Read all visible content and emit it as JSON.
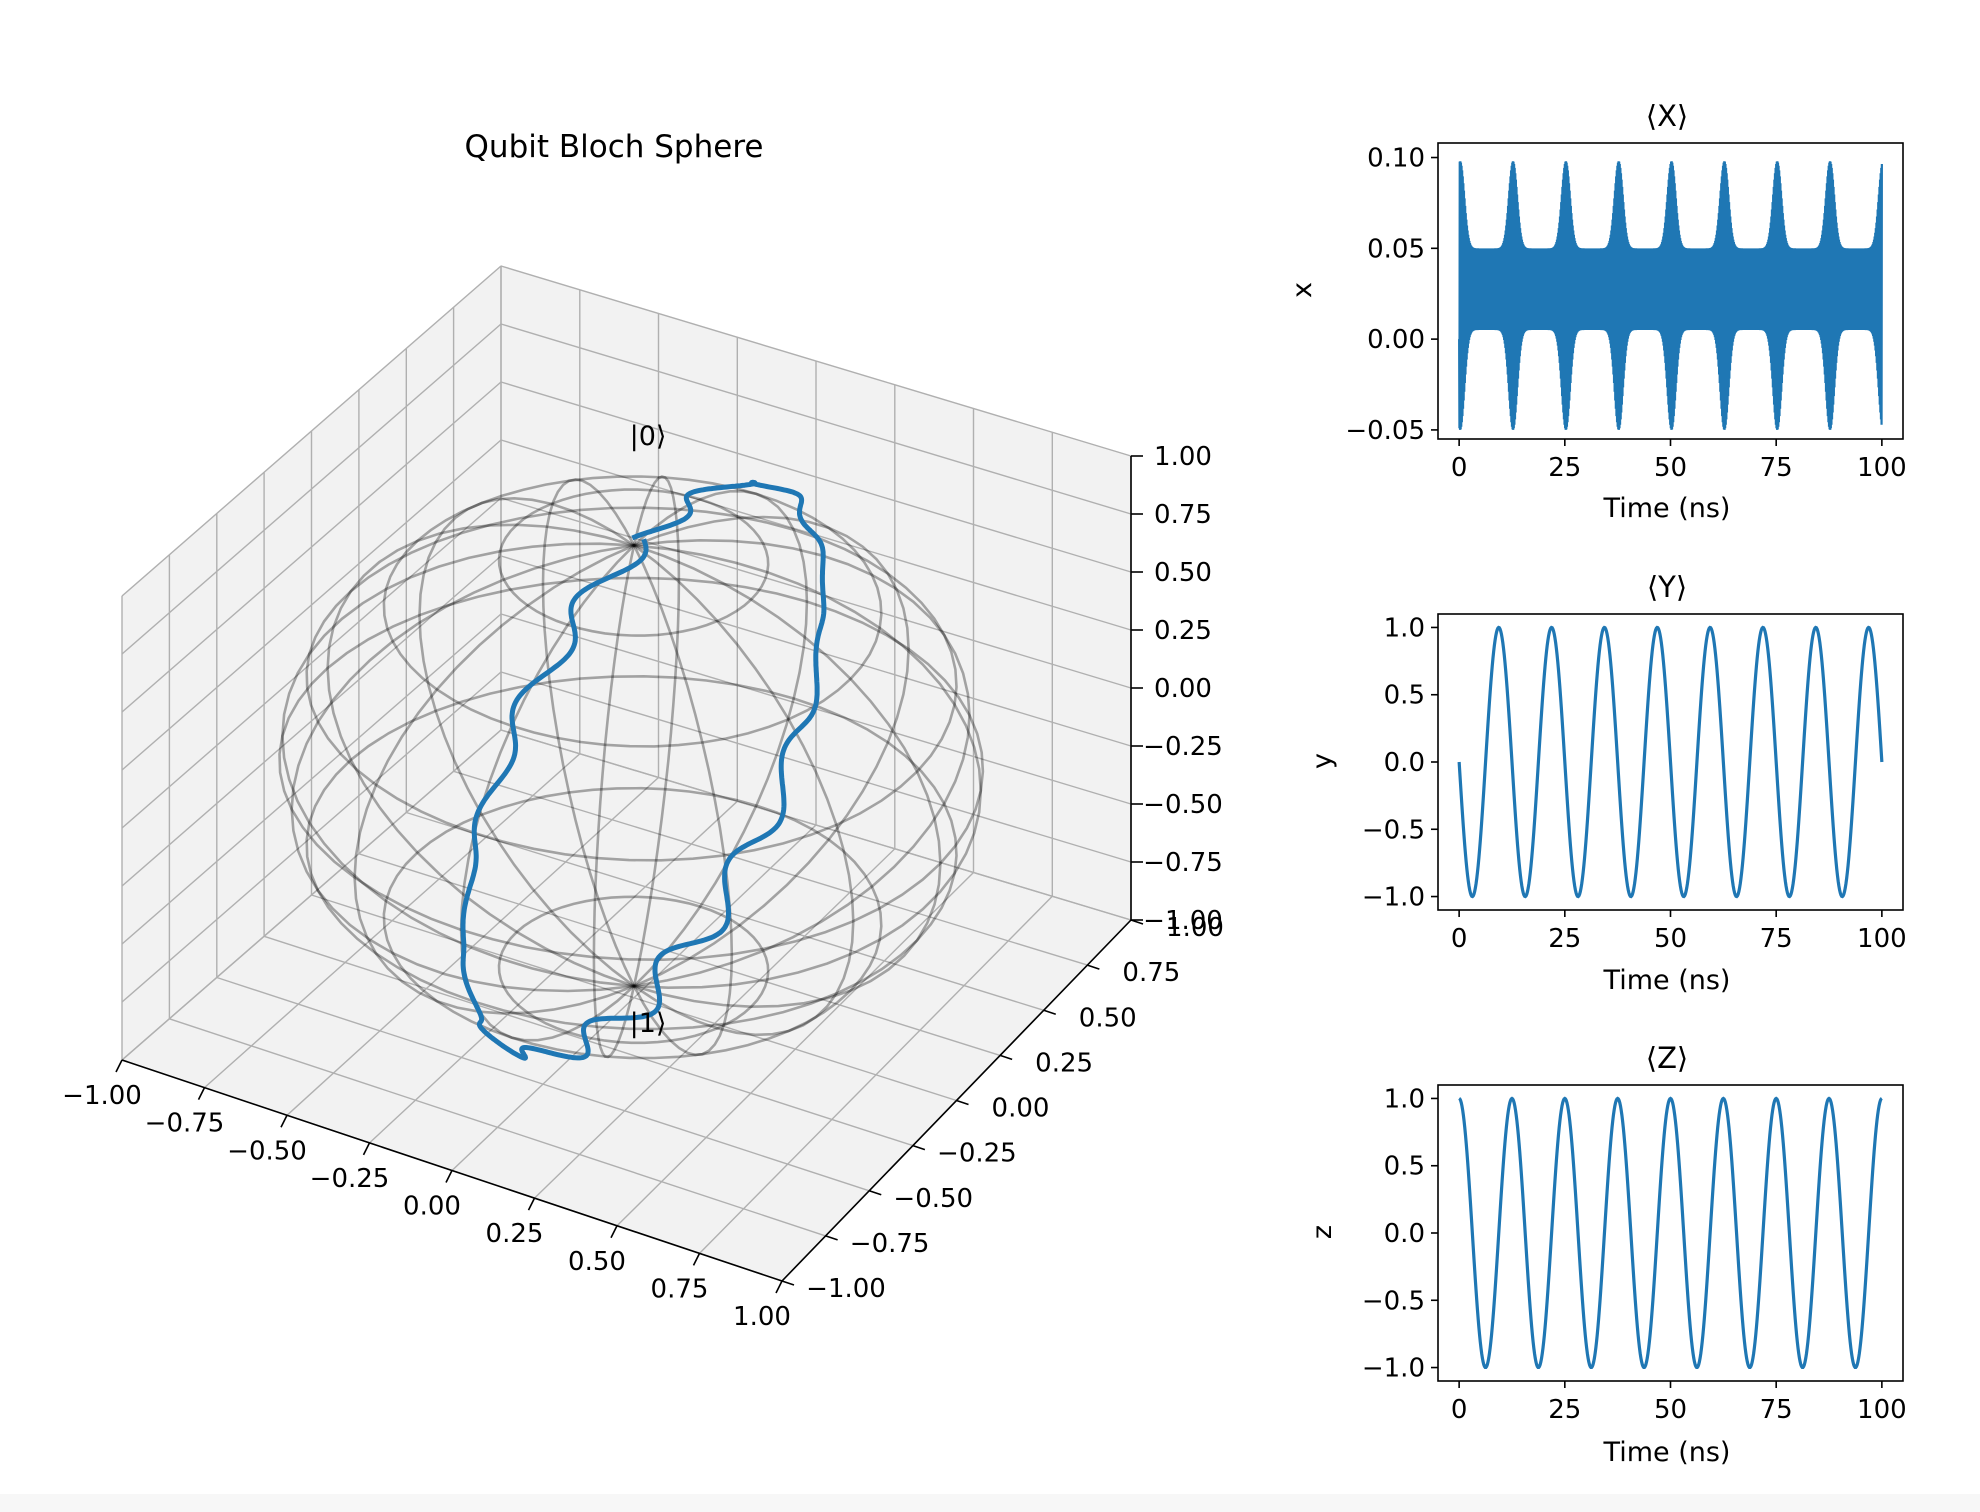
{
  "bloch": {
    "title": "Qubit Bloch Sphere",
    "label_zero": "|0⟩",
    "label_one": "|1⟩",
    "x_ticks": [
      "−1.00",
      "−0.75",
      "−0.50",
      "−0.25",
      "0.00",
      "0.25",
      "0.50",
      "0.75",
      "1.00"
    ],
    "y_ticks": [
      "−1.00",
      "−0.75",
      "−0.50",
      "−0.25",
      "0.00",
      "0.25",
      "0.50",
      "0.75",
      "1.00"
    ],
    "z_ticks": [
      "−1.00",
      "−0.75",
      "−0.50",
      "−0.25",
      "0.00",
      "0.25",
      "0.50",
      "0.75",
      "1.00"
    ],
    "x_range": [
      -1,
      1
    ],
    "y_range": [
      -1,
      1
    ],
    "z_range": [
      -1,
      1
    ],
    "sphere_color": "#000000",
    "trajectory_color": "#1f77b4",
    "pane_color": "#f2f2f2",
    "grid_color": "#b0b0b0"
  },
  "chart_data": [
    {
      "type": "line",
      "title": "⟨X⟩",
      "xlabel": "Time (ns)",
      "ylabel": "x",
      "xlim": [
        -5,
        105
      ],
      "ylim": [
        -0.055,
        0.108
      ],
      "xticks": [
        "0",
        "25",
        "50",
        "75",
        "100"
      ],
      "xtick_values": [
        0,
        25,
        50,
        75,
        100
      ],
      "yticks": [
        "−0.05",
        "0.00",
        "0.05",
        "0.10"
      ],
      "ytick_values": [
        -0.05,
        0.0,
        0.05,
        0.1
      ],
      "series": [
        {
          "color": "#1f77b4",
          "baseline": 0.025,
          "beat_period_ns": 12.5,
          "peak_high": 0.098,
          "peak_low": -0.05,
          "floor_high": 0.05,
          "floor_low": 0.005
        }
      ]
    },
    {
      "type": "line",
      "title": "⟨Y⟩",
      "xlabel": "Time (ns)",
      "ylabel": "y",
      "xlim": [
        -5,
        105
      ],
      "ylim": [
        -1.1,
        1.1
      ],
      "xticks": [
        "0",
        "25",
        "50",
        "75",
        "100"
      ],
      "xtick_values": [
        0,
        25,
        50,
        75,
        100
      ],
      "yticks": [
        "−1.0",
        "−0.5",
        "0.0",
        "0.5",
        "1.0"
      ],
      "ytick_values": [
        -1.0,
        -0.5,
        0.0,
        0.5,
        1.0
      ],
      "series": [
        {
          "color": "#1f77b4",
          "function": "-sin",
          "period_ns": 12.5,
          "amplitude": 1.0
        }
      ]
    },
    {
      "type": "line",
      "title": "⟨Z⟩",
      "xlabel": "Time (ns)",
      "ylabel": "z",
      "xlim": [
        -5,
        105
      ],
      "ylim": [
        -1.1,
        1.1
      ],
      "xticks": [
        "0",
        "25",
        "50",
        "75",
        "100"
      ],
      "xtick_values": [
        0,
        25,
        50,
        75,
        100
      ],
      "yticks": [
        "−1.0",
        "−0.5",
        "0.0",
        "0.5",
        "1.0"
      ],
      "ytick_values": [
        -1.0,
        -0.5,
        0.0,
        0.5,
        1.0
      ],
      "series": [
        {
          "color": "#1f77b4",
          "function": "cos",
          "period_ns": 12.5,
          "amplitude": 1.0
        }
      ]
    }
  ]
}
